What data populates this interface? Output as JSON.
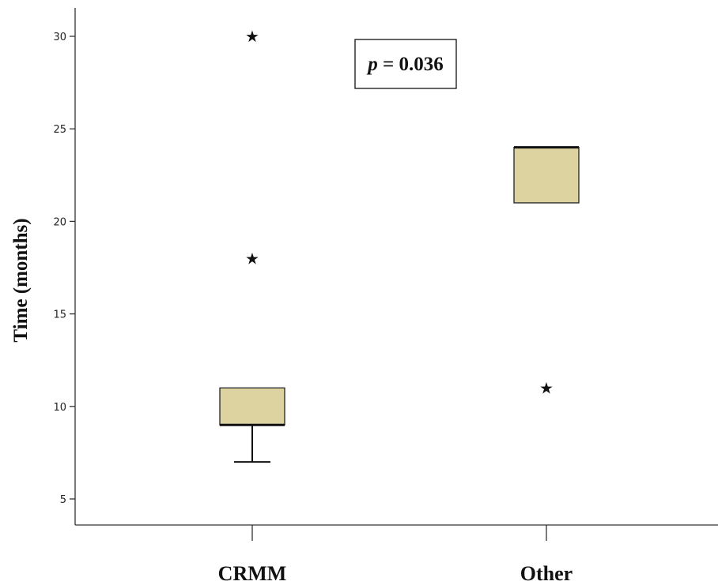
{
  "chart_data": {
    "type": "boxplot",
    "ylabel": "Time (months)",
    "xlabel": "",
    "ylim": [
      4,
      33
    ],
    "yticks": [
      5,
      10,
      15,
      20,
      25,
      30
    ],
    "grid": false,
    "categories": [
      "CRMM",
      "Other"
    ],
    "boxes": [
      {
        "category": "CRMM",
        "whisker_low": 7,
        "q1": 9,
        "median": 9,
        "q3": 11,
        "whisker_high": 11,
        "outliers": [
          18,
          30
        ]
      },
      {
        "category": "Other",
        "whisker_low": 21,
        "q1": 21,
        "median": 24,
        "q3": 24,
        "whisker_high": 24,
        "outliers": [
          11
        ]
      }
    ],
    "annotation": {
      "italic": "p",
      "rest": " = 0.036"
    },
    "outlier_marker": "★",
    "box_color": "#ddd3a0"
  }
}
